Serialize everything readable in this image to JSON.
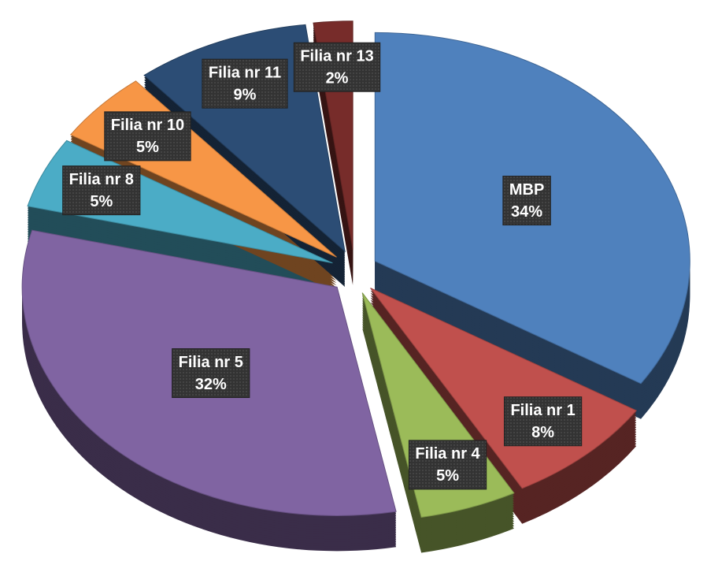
{
  "chart_data": {
    "type": "pie",
    "categories": [
      "MBP",
      "Filia nr 1",
      "Filia nr 4",
      "Filia nr 5",
      "Filia nr 8",
      "Filia nr 10",
      "Filia nr 11",
      "Filia nr 13"
    ],
    "values": [
      34,
      8,
      5,
      32,
      5,
      5,
      9,
      2
    ],
    "value_labels": [
      "34%",
      "8%",
      "5%",
      "32%",
      "5%",
      "5%",
      "9%",
      "2%"
    ],
    "colors": [
      "#4f81bd",
      "#c0504d",
      "#9bbb59",
      "#8064a2",
      "#4bacc6",
      "#f79646",
      "#2c4d75",
      "#772c2a"
    ]
  }
}
